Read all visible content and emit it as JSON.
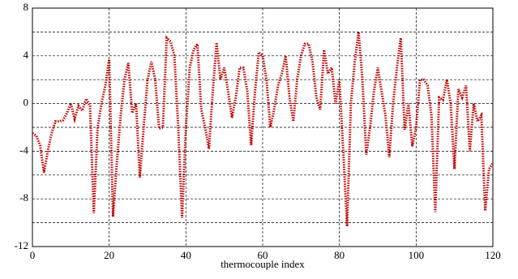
{
  "chart_data": {
    "type": "line",
    "x_label": "thermocouple index",
    "x": [
      0,
      1,
      2,
      3,
      4,
      5,
      6,
      7,
      8,
      9,
      10,
      11,
      12,
      13,
      14,
      15,
      16,
      17,
      18,
      19,
      20,
      21,
      22,
      23,
      24,
      25,
      26,
      27,
      28,
      29,
      30,
      31,
      32,
      33,
      34,
      35,
      36,
      37,
      38,
      39,
      40,
      41,
      42,
      43,
      44,
      45,
      46,
      47,
      48,
      49,
      50,
      51,
      52,
      53,
      54,
      55,
      56,
      57,
      58,
      59,
      60,
      61,
      62,
      63,
      64,
      65,
      66,
      67,
      68,
      69,
      70,
      71,
      72,
      73,
      74,
      75,
      76,
      77,
      78,
      79,
      80,
      81,
      82,
      83,
      84,
      85,
      86,
      87,
      88,
      89,
      90,
      91,
      92,
      93,
      94,
      95,
      96,
      97,
      98,
      99,
      100,
      101,
      102,
      103,
      104,
      105,
      106,
      107,
      108,
      109,
      110,
      111,
      112,
      113,
      114,
      115,
      116,
      117,
      118,
      119,
      120
    ],
    "series": [
      {
        "color": "#c00000",
        "values": [
          -2.5,
          -2.7,
          -3.5,
          -5.8,
          -4,
          -2.5,
          -1.5,
          -1.5,
          -1.4,
          -0.8,
          0,
          -1.3,
          -0.2,
          -0.6,
          0.4,
          -0.2,
          -9.2,
          -2,
          0,
          1.5,
          3.7,
          -9.5,
          -5,
          -1,
          2,
          3.4,
          -0.8,
          0,
          -6.2,
          -2,
          2,
          3.5,
          2,
          -2.1,
          -2,
          5.5,
          5.2,
          4,
          -2,
          -9.6,
          -2,
          3,
          4.5,
          5,
          -0.5,
          -2,
          -3.8,
          1,
          5.1,
          2,
          3,
          1,
          -1.2,
          0.5,
          3,
          3,
          1,
          -3.5,
          1,
          4.3,
          4,
          2,
          -2,
          -0.5,
          1.5,
          2.5,
          4,
          0.5,
          -1.5,
          2,
          4,
          5,
          5,
          3.5,
          0.5,
          -0.5,
          4.5,
          2.5,
          3,
          0,
          2,
          -4,
          -10.3,
          0,
          3.5,
          6,
          2,
          -4.3,
          -2,
          1,
          3,
          1,
          -1,
          -4.5,
          0,
          3,
          5.5,
          -2.2,
          0,
          -3.6,
          -2,
          2,
          2,
          1.5,
          -1,
          -9.1,
          0.5,
          0.3,
          2,
          0,
          -5.5,
          1.2,
          0.5,
          1.5,
          -4,
          0,
          -1.5,
          -1,
          -9,
          -5.5,
          -5
        ]
      }
    ],
    "xlim": [
      0,
      120
    ],
    "xticks": [
      0,
      20,
      40,
      60,
      80,
      100,
      120
    ],
    "ylim": [
      -12,
      8
    ],
    "yticks": [
      -12,
      -8,
      -4,
      0,
      4,
      8
    ],
    "yminorticks": [
      -10,
      -6,
      -2,
      2,
      6
    ],
    "grid": true
  }
}
